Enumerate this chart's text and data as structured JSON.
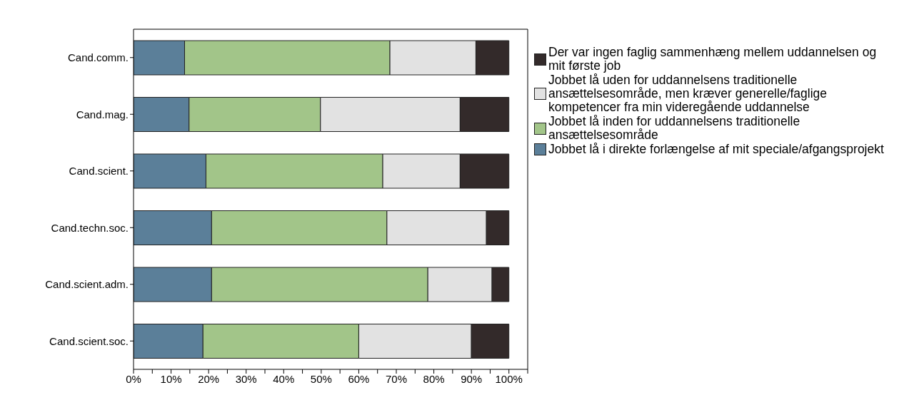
{
  "chart_data": {
    "type": "bar",
    "orientation": "horizontal",
    "stacked": true,
    "categories": [
      "Cand.comm.",
      "Cand.mag.",
      "Cand.scient.",
      "Cand.techn.soc.",
      "Cand.scient.adm.",
      "Cand.scient.soc."
    ],
    "series": [
      {
        "name": "Jobbet lå i direkte forlængelse af mit speciale/afgangsprojekt",
        "color": "#5b7f99",
        "values": [
          13.6,
          14.8,
          19.3,
          20.8,
          20.8,
          18.5
        ]
      },
      {
        "name": "Jobbet lå inden for uddannelsens traditionelle ansættelsesområde",
        "color": "#a2c589",
        "values": [
          54.7,
          35.0,
          47.1,
          46.7,
          57.6,
          41.5
        ]
      },
      {
        "name": "Jobbet lå uden for uddannelsens traditionelle ansættelsesområde, men kræver generelle/faglige kompetencer fra min videregående uddannelse",
        "color": "#e2e2e2",
        "values": [
          22.9,
          37.2,
          20.6,
          26.5,
          17.1,
          30.0
        ]
      },
      {
        "name": "Der var ingen faglig sammenhæng mellem uddannelsen og mit første job",
        "color": "#332a2a",
        "values": [
          8.8,
          13.0,
          13.0,
          6.0,
          4.5,
          10.0
        ]
      }
    ],
    "xlim": [
      0,
      105
    ],
    "xticks": [
      {
        "value": 0,
        "label": "0%"
      },
      {
        "value": 5,
        "label": null
      },
      {
        "value": 10,
        "label": "10%"
      },
      {
        "value": 15,
        "label": null
      },
      {
        "value": 20,
        "label": "20%"
      },
      {
        "value": 25,
        "label": null
      },
      {
        "value": 30,
        "label": "30%"
      },
      {
        "value": 35,
        "label": null
      },
      {
        "value": 40,
        "label": "40%"
      },
      {
        "value": 45,
        "label": null
      },
      {
        "value": 50,
        "label": "50%"
      },
      {
        "value": 55,
        "label": null
      },
      {
        "value": 60,
        "label": "60%"
      },
      {
        "value": 65,
        "label": null
      },
      {
        "value": 70,
        "label": "70%"
      },
      {
        "value": 75,
        "label": null
      },
      {
        "value": 80,
        "label": "80%"
      },
      {
        "value": 85,
        "label": null
      },
      {
        "value": 90,
        "label": "90%"
      },
      {
        "value": 95,
        "label": null
      },
      {
        "value": 100,
        "label": "100%"
      },
      {
        "value": 105,
        "label": null
      }
    ],
    "grid": false,
    "legend": "right"
  }
}
